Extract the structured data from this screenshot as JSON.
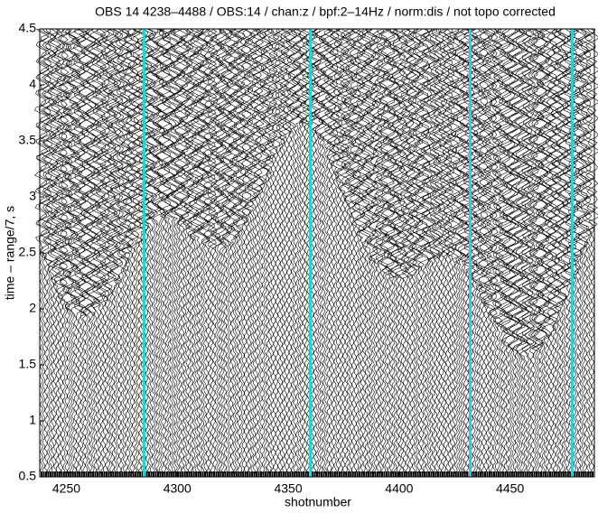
{
  "chart_data": {
    "type": "wiggle",
    "title": "OBS 14 4238–4488 / OBS:14 / chan:z / bpf:2–14Hz / norm:dis / not topo corrected",
    "x_label": "shotnumber",
    "y_label": "time – range/7, s",
    "xlim": [
      4238,
      4488
    ],
    "xticks": [
      4250,
      4300,
      4350,
      4400,
      4450
    ],
    "ylim": [
      0.5,
      4.5
    ],
    "yticks": [
      0.5,
      1,
      1.5,
      2,
      2.5,
      3,
      3.5,
      4,
      4.5
    ],
    "markers": {
      "color": "#22d3d8",
      "x": [
        4285,
        4360,
        4432,
        4478
      ]
    }
  }
}
